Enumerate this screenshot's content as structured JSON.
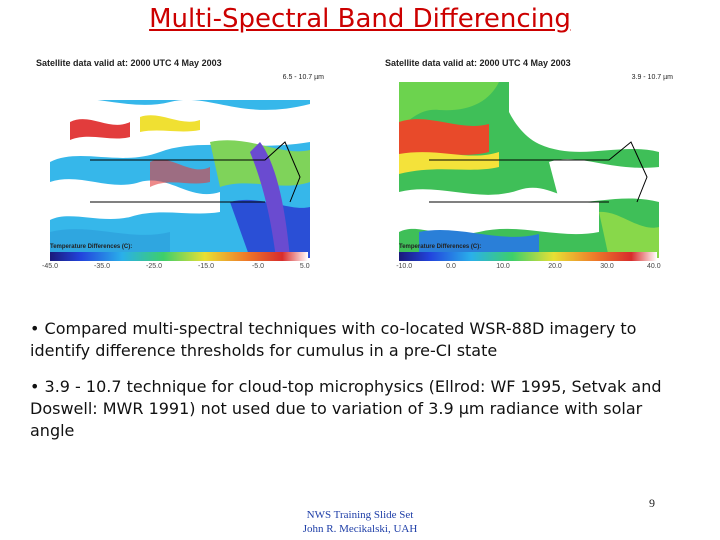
{
  "slide": {
    "title": "Multi-Spectral Band Differencing",
    "page_number": "9"
  },
  "panels": {
    "left": {
      "header": "Satellite data valid at:  2000 UTC   4 May       2003",
      "band": "6.5 - 10.7 µm",
      "colorbar_label": "Temperature Differences (C):",
      "ticks": [
        "-45.0",
        "-35.0",
        "-25.0",
        "-15.0",
        "-5.0",
        "5.0"
      ]
    },
    "right": {
      "header": "Satellite data valid at:  2000 UTC   4 May       2003",
      "band": "3.9 - 10.7 µm",
      "colorbar_label": "Temperature Differences (C):",
      "ticks": [
        "-10.0",
        "0.0",
        "10.0",
        "20.0",
        "30.0",
        "40.0"
      ]
    }
  },
  "bullets": [
    "• Compared multi-spectral techniques with co-located WSR-88D imagery to identify difference thresholds for cumulus in a pre-CI state",
    "• 3.9 - 10.7 technique for cloud-top microphysics (Ellrod: WF 1995, Setvak and Doswell: MWR 1991) not used due to variation of 3.9 µm radiance with solar angle"
  ],
  "footer": {
    "line1": "NWS Training Slide Set",
    "line2": "John R. Mecikalski, UAH"
  }
}
